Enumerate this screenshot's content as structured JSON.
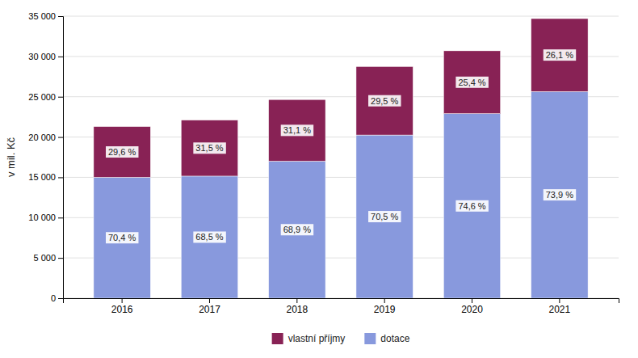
{
  "chart_data": {
    "type": "bar",
    "stacked": true,
    "categories": [
      "2016",
      "2017",
      "2018",
      "2019",
      "2020",
      "2021"
    ],
    "series": [
      {
        "name": "dotace",
        "color": "#8899dd",
        "values": [
          15000,
          15150,
          17000,
          20250,
          22900,
          25650
        ],
        "shares": [
          {
            "value": 70.4,
            "label": "70,4 %"
          },
          {
            "value": 68.5,
            "label": "68,5 %"
          },
          {
            "value": 68.9,
            "label": "68,9 %"
          },
          {
            "value": 70.5,
            "label": "70,5 %"
          },
          {
            "value": 74.6,
            "label": "74,6 %"
          },
          {
            "value": 73.9,
            "label": "73,9 %"
          }
        ]
      },
      {
        "name": "vlastní příjmy",
        "color": "#882255",
        "values": [
          6300,
          6950,
          7650,
          8500,
          7800,
          9050
        ],
        "shares": [
          {
            "value": 29.6,
            "label": "29,6 %"
          },
          {
            "value": 31.5,
            "label": "31,5 %"
          },
          {
            "value": 31.1,
            "label": "31,1 %"
          },
          {
            "value": 29.5,
            "label": "29,5 %"
          },
          {
            "value": 25.4,
            "label": "25,4 %"
          },
          {
            "value": 26.1,
            "label": "26,1 %"
          }
        ]
      }
    ],
    "y_label": "v mil. Kč",
    "ylim": [
      0,
      35000
    ],
    "yticks": [
      0,
      {
        "value": 5000,
        "label": "5 000"
      },
      {
        "value": 10000,
        "label": "10 000"
      },
      {
        "value": 15000,
        "label": "15 000"
      },
      {
        "value": 20000,
        "label": "20 000"
      },
      {
        "value": 25000,
        "label": "25 000"
      },
      {
        "value": 30000,
        "label": "30 000"
      },
      {
        "value": 35000,
        "label": "35 000"
      }
    ],
    "grid": true,
    "legend": "bottom"
  }
}
